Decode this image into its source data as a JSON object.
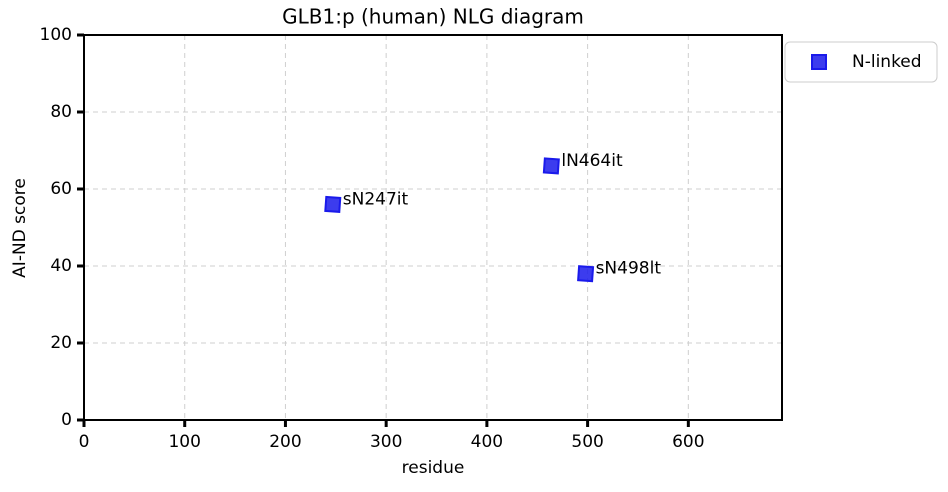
{
  "chart_data": {
    "type": "scatter",
    "title": "GLB1:p (human) NLG diagram",
    "x_label": "residue",
    "y_label": "AI-ND score",
    "series": [
      {
        "name": "N-linked",
        "color": "#1a1aeb",
        "x": [
          247,
          464,
          498
        ],
        "values": [
          56,
          66,
          38
        ],
        "labels": [
          "sN247it",
          "lN464it",
          "sN498lt"
        ]
      }
    ],
    "xlim": [
      0,
      693
    ],
    "ylim": [
      0,
      100
    ],
    "xticks": [
      0,
      100,
      200,
      300,
      400,
      500,
      600
    ],
    "yticks": [
      0,
      20,
      40,
      60,
      80,
      100
    ],
    "grid": true,
    "legend": "outside-upper-right"
  }
}
